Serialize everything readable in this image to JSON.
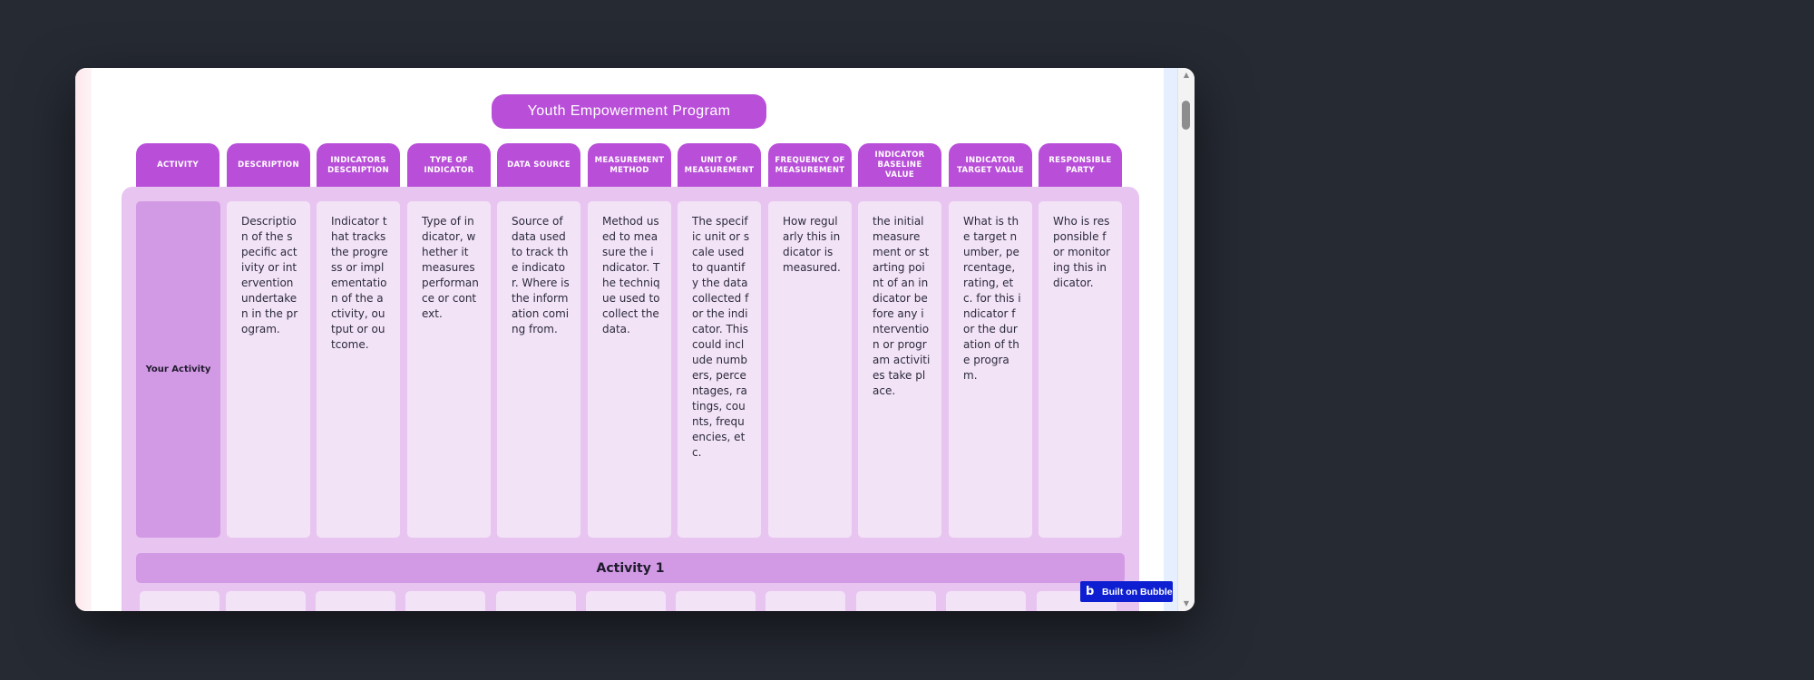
{
  "program_title": "Youth Empowerment Program",
  "columns": [
    "ACTIVITY",
    "DESCRIPTION",
    "INDICATORS DESCRIPTION",
    "TYPE OF INDICATOR",
    "DATA SOURCE",
    "MEASUREMENT METHOD",
    "UNIT OF MEASUREMENT",
    "FREQUENCY OF MEASUREMENT",
    "INDICATOR BASELINE VALUE",
    "INDICATOR TARGET VALUE",
    "RESPONSIBLE PARTY"
  ],
  "template_row": {
    "activity": "Your Activity",
    "cells": [
      "Description of the specific activity or intervention undertaken in the program.",
      "Indicator that tracks the progress or implementation of the activity, output or outcome.",
      "Type of indicator, whether it measures performance or context.",
      "Source of data used to track the indicator. Where is the information coming from.",
      "Method used to measure the indicator. The technique used to collect the data.",
      "The specific unit or scale used to quantify the data collected for the indicator. This could include numbers, percentages, ratings, counts, frequencies, etc.",
      "How regularly this indicator is measured.",
      "the initial measurement or starting point of an indicator before any intervention or program activities take place.",
      "What is the target number, percentage, rating, etc. for this indicator for the duration of the program.",
      "Who is responsible for monitoring this indicator."
    ]
  },
  "activity_banner": "Activity 1",
  "badge": {
    "label": "Built on Bubble",
    "logo_glyph": "b"
  },
  "colors": {
    "accent": "#b94fd9",
    "panel": "#e8c4f1",
    "activity_cell": "#d29ae4",
    "cell": "#f3e3f7",
    "badge": "#0d1fd0"
  }
}
